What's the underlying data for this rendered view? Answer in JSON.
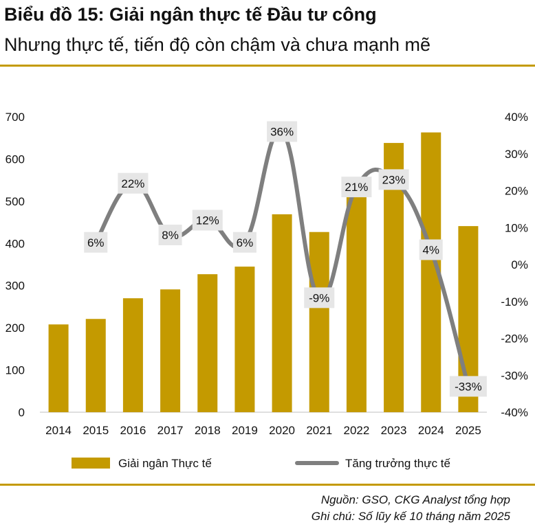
{
  "header": {
    "title": "Biểu đồ 15: Giải ngân thực tế Đầu tư công",
    "subtitle": "Nhưng thực tế, tiến độ còn chậm và chưa mạnh mẽ"
  },
  "footer": {
    "source": "Nguồn: GSO, CKG Analyst tổng hợp",
    "note": "Ghi chú: Số lũy kế 10 tháng năm 2025"
  },
  "colors": {
    "bar": "#c49a00",
    "line": "#7f7f7f",
    "label_bg": "#e6e6e6",
    "rule": "#c49a00"
  },
  "chart_data": {
    "type": "bar",
    "categories": [
      "2014",
      "2015",
      "2016",
      "2017",
      "2018",
      "2019",
      "2020",
      "2021",
      "2022",
      "2023",
      "2024",
      "2025"
    ],
    "series": [
      {
        "name": "Giải ngân Thực tế",
        "type": "bar",
        "axis": "left",
        "values": [
          208,
          221,
          270,
          291,
          327,
          345,
          469,
          427,
          517,
          638,
          663,
          441
        ]
      },
      {
        "name": "Tăng trưởng thực tế",
        "type": "line",
        "axis": "right",
        "values": [
          null,
          6,
          22,
          8,
          12,
          6,
          36,
          -9,
          21,
          23,
          4,
          -33
        ],
        "labels": [
          "",
          "6%",
          "22%",
          "8%",
          "12%",
          "6%",
          "36%",
          "-9%",
          "21%",
          "23%",
          "4%",
          "-33%"
        ]
      }
    ],
    "ylim_left": [
      0,
      700
    ],
    "yticks_left": [
      "0",
      "100",
      "200",
      "300",
      "400",
      "500",
      "600",
      "700"
    ],
    "ylim_right": [
      -40,
      40
    ],
    "yticks_right": [
      "-40%",
      "-30%",
      "-20%",
      "-10%",
      "0%",
      "10%",
      "20%",
      "30%",
      "40%"
    ],
    "legend": "bottom",
    "grid": false
  }
}
